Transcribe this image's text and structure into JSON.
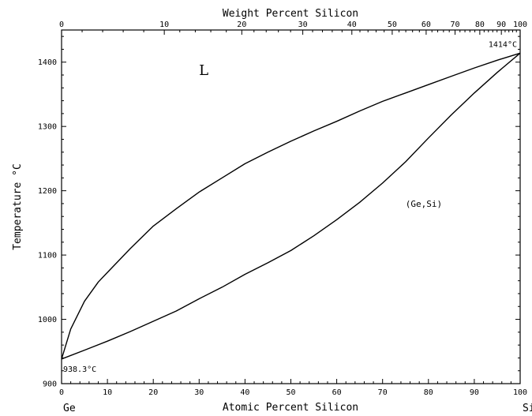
{
  "chart_data": {
    "type": "line",
    "title": "Weight Percent Silicon",
    "xlabel": "Atomic Percent Silicon",
    "ylabel": "Temperature °C",
    "xlim": [
      0,
      100
    ],
    "ylim": [
      900,
      1450
    ],
    "grid": false,
    "x_ticks": [
      0,
      10,
      20,
      30,
      40,
      50,
      60,
      70,
      80,
      90,
      100
    ],
    "y_ticks": [
      900,
      1000,
      1100,
      1200,
      1300,
      1400
    ],
    "top_axis_ticks": [
      {
        "label": "0",
        "at": 0
      },
      {
        "label": "10",
        "at": 22.4
      },
      {
        "label": "20",
        "at": 39.3
      },
      {
        "label": "30",
        "at": 52.6
      },
      {
        "label": "40",
        "at": 63.3
      },
      {
        "label": "50",
        "at": 72.1
      },
      {
        "label": "60",
        "at": 79.5
      },
      {
        "label": "70",
        "at": 85.8
      },
      {
        "label": "80",
        "at": 91.2
      },
      {
        "label": "90",
        "at": 95.9
      },
      {
        "label": "100",
        "at": 100
      }
    ],
    "end_labels": {
      "left": "Ge",
      "right": "Si"
    },
    "region_labels": [
      {
        "text": "L",
        "x": 31,
        "y": 1380
      },
      {
        "text": "(Ge,Si)",
        "x": 79,
        "y": 1175
      }
    ],
    "point_labels": [
      {
        "text": "938.3°C",
        "x": 0,
        "y": 938.3,
        "anchor": "below-right"
      },
      {
        "text": "1414°C",
        "x": 100,
        "y": 1414,
        "anchor": "above-left"
      }
    ],
    "series": [
      {
        "role": "liquidus",
        "x": [
          0,
          2,
          5,
          8,
          10,
          15,
          20,
          25,
          30,
          35,
          40,
          45,
          50,
          55,
          60,
          65,
          70,
          75,
          80,
          85,
          90,
          95,
          100
        ],
        "y": [
          938.3,
          985,
          1028,
          1058,
          1073,
          1110,
          1145,
          1172,
          1198,
          1220,
          1242,
          1260,
          1277,
          1293,
          1308,
          1324,
          1339,
          1352,
          1365,
          1378,
          1391,
          1403,
          1414
        ]
      },
      {
        "role": "solidus",
        "x": [
          0,
          5,
          10,
          15,
          20,
          25,
          30,
          35,
          40,
          45,
          50,
          55,
          60,
          65,
          70,
          75,
          80,
          85,
          90,
          95,
          100
        ],
        "y": [
          938.3,
          952,
          966,
          981,
          997,
          1013,
          1032,
          1050,
          1070,
          1088,
          1107,
          1130,
          1155,
          1182,
          1212,
          1245,
          1282,
          1318,
          1352,
          1384,
          1414
        ]
      }
    ]
  }
}
